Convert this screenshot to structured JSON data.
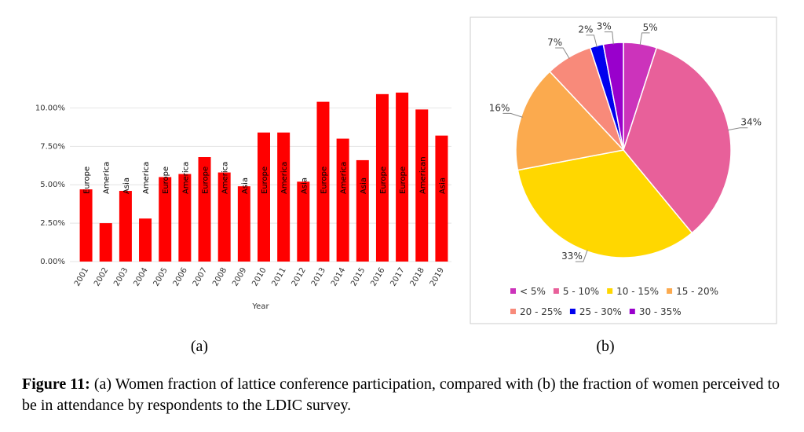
{
  "chart_data": [
    {
      "type": "bar",
      "xlabel": "Year",
      "categories": [
        "2001",
        "2002",
        "2003",
        "2004",
        "2005",
        "2006",
        "2007",
        "2008",
        "2009",
        "2010",
        "2011",
        "2012",
        "2013",
        "2014",
        "2015",
        "2016",
        "2017",
        "2018",
        "2019"
      ],
      "values": [
        4.7,
        2.5,
        4.6,
        2.8,
        5.5,
        5.7,
        6.8,
        5.8,
        4.9,
        8.4,
        8.4,
        5.2,
        10.4,
        8.0,
        6.6,
        10.9,
        11.0,
        9.9,
        8.2
      ],
      "annotations": [
        "Europe",
        "America",
        "Asia",
        "America",
        "Europe",
        "America",
        "Europe",
        "America",
        "Asia",
        "Europe",
        "America",
        "Asia",
        "Europe",
        "America",
        "Asia",
        "Europe",
        "Europe",
        "American",
        "Asia"
      ],
      "color": "#ff0000",
      "ylim": [
        0,
        11.3
      ],
      "yticks": [
        {
          "value": 0,
          "label": "0.00%"
        },
        {
          "value": 2.5,
          "label": "2.50%"
        },
        {
          "value": 5,
          "label": "5.00%"
        },
        {
          "value": 7.5,
          "label": "7.50%"
        },
        {
          "value": 10,
          "label": "10.00%"
        }
      ],
      "grid": true,
      "subcaption": "(a)"
    },
    {
      "type": "pie",
      "categories": [
        "< 5%",
        "5 - 10%",
        "10 - 15%",
        "15 - 20%",
        "20 - 25%",
        "25 - 30%",
        "30 - 35%"
      ],
      "values": [
        5,
        34,
        33,
        16,
        7,
        2,
        3
      ],
      "value_labels": [
        "5%",
        "34%",
        "33%",
        "16%",
        "7%",
        "2%",
        "3%"
      ],
      "colors": [
        "#cc33bb",
        "#e8609a",
        "#ffd700",
        "#fbaa4e",
        "#f88a7a",
        "#0000ee",
        "#9900cc"
      ],
      "legend": "bottom",
      "subcaption": "(b)"
    }
  ],
  "caption": {
    "label": "Figure 11:",
    "text": "(a) Women fraction of lattice conference participation, compared with (b) the fraction of women perceived to be in attendance by respondents to the LDIC survey."
  }
}
